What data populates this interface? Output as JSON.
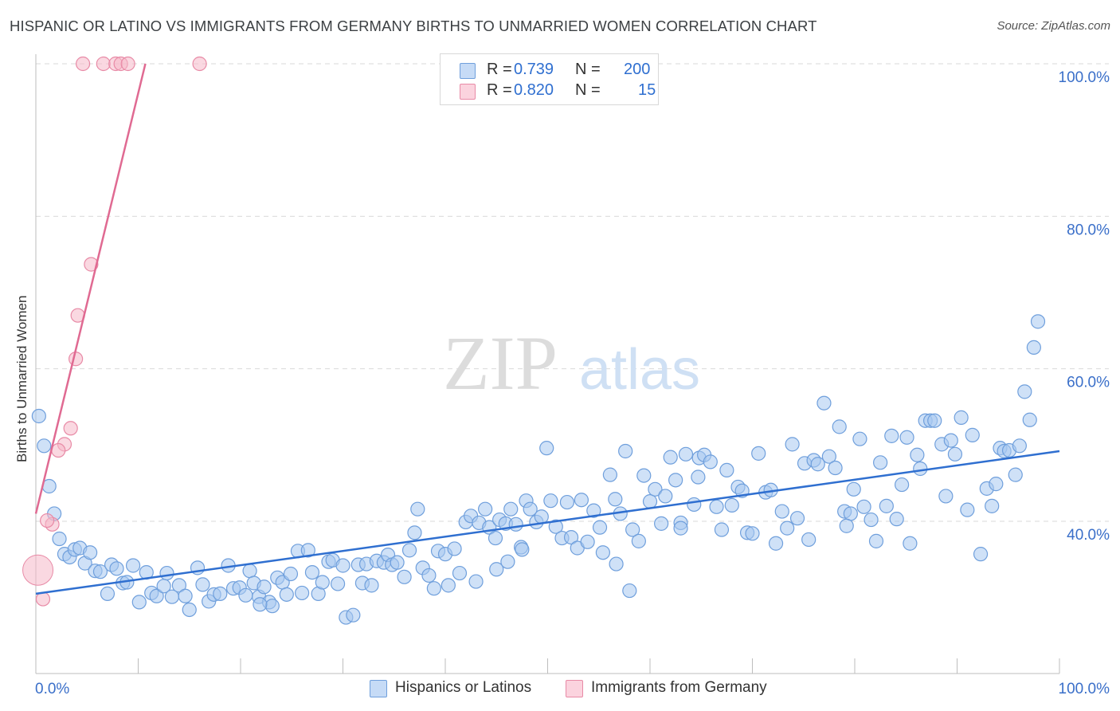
{
  "header": {
    "title": "HISPANIC OR LATINO VS IMMIGRANTS FROM GERMANY BIRTHS TO UNMARRIED WOMEN CORRELATION CHART",
    "source": "Source: ZipAtlas.com"
  },
  "legend": {
    "rows": [
      {
        "r_label": "R =",
        "r_value": "0.739",
        "n_label": "N =",
        "n_value": "200",
        "color": "#a8c8f0"
      },
      {
        "r_label": "R =",
        "r_value": "0.820",
        "n_label": "N =",
        "n_value": "15",
        "color": "#f5b8c8"
      }
    ]
  },
  "watermark": {
    "zip": "ZIP",
    "atlas": "atlas"
  },
  "colors": {
    "blue_fill": "#a8c8f0",
    "blue_stroke": "#6f9fdc",
    "blue_line": "#2f6fd0",
    "pink_fill": "#f5b8c8",
    "pink_stroke": "#e88aa6",
    "pink_line": "#e06a92",
    "tick_label": "#3a6fc9",
    "grid": "#d9d9d9"
  },
  "chart_data": {
    "type": "scatter",
    "title": "HISPANIC OR LATINO VS IMMIGRANTS FROM GERMANY BIRTHS TO UNMARRIED WOMEN CORRELATION CHART",
    "xlabel": "",
    "ylabel": "Births to Unmarried Women",
    "xlim": [
      0,
      100
    ],
    "ylim": [
      18,
      102
    ],
    "x_tick_labels": [
      "0.0%",
      "100.0%"
    ],
    "y_ticks": [
      40,
      60,
      80,
      100
    ],
    "y_tick_labels": [
      "40.0%",
      "60.0%",
      "80.0%",
      "100.0%"
    ],
    "grid": true,
    "legend_position": "bottom-center",
    "series": [
      {
        "name": "Hispanics or Latinos",
        "color": "#a8c8f0",
        "R": 0.739,
        "N": 200,
        "trend": {
          "x": [
            0,
            100
          ],
          "y": [
            30.5,
            49.2
          ]
        },
        "points": [
          [
            0.3,
            53.8
          ],
          [
            0.8,
            49.9
          ],
          [
            1.3,
            44.6
          ],
          [
            1.8,
            41.0
          ],
          [
            2.3,
            37.7
          ],
          [
            2.8,
            35.7
          ],
          [
            3.3,
            35.3
          ],
          [
            3.8,
            36.3
          ],
          [
            4.3,
            36.5
          ],
          [
            4.8,
            34.5
          ],
          [
            5.3,
            35.9
          ],
          [
            5.8,
            33.5
          ],
          [
            6.3,
            33.4
          ],
          [
            7.0,
            30.5
          ],
          [
            7.4,
            34.3
          ],
          [
            7.9,
            33.8
          ],
          [
            8.5,
            31.9
          ],
          [
            8.9,
            32.0
          ],
          [
            9.5,
            34.2
          ],
          [
            10.1,
            29.4
          ],
          [
            10.8,
            33.3
          ],
          [
            11.3,
            30.6
          ],
          [
            11.8,
            30.2
          ],
          [
            12.5,
            31.5
          ],
          [
            12.8,
            33.2
          ],
          [
            13.3,
            30.1
          ],
          [
            14.0,
            31.6
          ],
          [
            14.6,
            30.2
          ],
          [
            15.0,
            28.4
          ],
          [
            15.8,
            33.9
          ],
          [
            16.3,
            31.7
          ],
          [
            16.9,
            29.5
          ],
          [
            17.4,
            30.4
          ],
          [
            18.0,
            30.5
          ],
          [
            18.8,
            34.2
          ],
          [
            19.3,
            31.2
          ],
          [
            19.9,
            31.3
          ],
          [
            20.5,
            30.3
          ],
          [
            20.9,
            33.5
          ],
          [
            21.3,
            31.9
          ],
          [
            21.8,
            30.1
          ],
          [
            22.3,
            31.4
          ],
          [
            22.8,
            29.4
          ],
          [
            23.1,
            28.9
          ],
          [
            23.6,
            32.6
          ],
          [
            24.1,
            32.0
          ],
          [
            24.5,
            30.4
          ],
          [
            24.9,
            33.1
          ],
          [
            25.6,
            36.1
          ],
          [
            26.0,
            30.6
          ],
          [
            26.6,
            36.2
          ],
          [
            27.0,
            33.3
          ],
          [
            27.6,
            30.5
          ],
          [
            28.0,
            32.0
          ],
          [
            28.6,
            34.7
          ],
          [
            29.0,
            34.9
          ],
          [
            29.5,
            31.8
          ],
          [
            30.0,
            34.2
          ],
          [
            30.3,
            27.4
          ],
          [
            31.0,
            27.7
          ],
          [
            31.5,
            34.3
          ],
          [
            31.9,
            31.9
          ],
          [
            32.3,
            34.4
          ],
          [
            32.8,
            31.6
          ],
          [
            33.3,
            34.8
          ],
          [
            34.0,
            34.6
          ],
          [
            34.4,
            35.6
          ],
          [
            34.8,
            34.3
          ],
          [
            35.3,
            34.6
          ],
          [
            36.0,
            32.7
          ],
          [
            36.5,
            36.2
          ],
          [
            37.0,
            38.5
          ],
          [
            37.3,
            41.6
          ],
          [
            37.8,
            33.9
          ],
          [
            38.4,
            32.9
          ],
          [
            38.9,
            31.2
          ],
          [
            39.3,
            36.1
          ],
          [
            40.0,
            35.7
          ],
          [
            40.3,
            31.6
          ],
          [
            40.9,
            36.4
          ],
          [
            41.4,
            33.2
          ],
          [
            42.0,
            39.9
          ],
          [
            42.5,
            40.7
          ],
          [
            43.0,
            32.1
          ],
          [
            43.3,
            39.8
          ],
          [
            43.9,
            41.6
          ],
          [
            44.3,
            39.2
          ],
          [
            44.9,
            37.8
          ],
          [
            45.3,
            40.2
          ],
          [
            45.9,
            39.7
          ],
          [
            46.4,
            41.6
          ],
          [
            46.9,
            39.6
          ],
          [
            47.4,
            36.6
          ],
          [
            47.9,
            42.7
          ],
          [
            48.3,
            41.6
          ],
          [
            48.9,
            39.9
          ],
          [
            49.4,
            40.6
          ],
          [
            49.9,
            49.6
          ],
          [
            50.3,
            42.7
          ],
          [
            50.8,
            39.3
          ],
          [
            51.4,
            37.8
          ],
          [
            51.9,
            42.5
          ],
          [
            52.3,
            37.9
          ],
          [
            52.9,
            36.5
          ],
          [
            53.3,
            42.8
          ],
          [
            53.9,
            37.3
          ],
          [
            54.5,
            41.4
          ],
          [
            55.1,
            39.2
          ],
          [
            55.4,
            35.9
          ],
          [
            56.1,
            46.1
          ],
          [
            56.6,
            42.9
          ],
          [
            57.1,
            41.0
          ],
          [
            57.6,
            49.2
          ],
          [
            58.3,
            38.9
          ],
          [
            58.9,
            37.4
          ],
          [
            59.4,
            46.0
          ],
          [
            60.0,
            42.6
          ],
          [
            60.5,
            44.2
          ],
          [
            61.1,
            39.7
          ],
          [
            61.5,
            43.3
          ],
          [
            62.0,
            48.4
          ],
          [
            62.5,
            45.4
          ],
          [
            63.0,
            39.8
          ],
          [
            63.5,
            48.8
          ],
          [
            64.3,
            42.2
          ],
          [
            64.8,
            48.3
          ],
          [
            65.3,
            48.7
          ],
          [
            65.9,
            47.8
          ],
          [
            66.5,
            41.9
          ],
          [
            67.0,
            38.9
          ],
          [
            67.5,
            46.7
          ],
          [
            68.0,
            42.1
          ],
          [
            68.6,
            44.5
          ],
          [
            69.0,
            44.0
          ],
          [
            69.5,
            38.5
          ],
          [
            70.0,
            38.4
          ],
          [
            70.6,
            48.9
          ],
          [
            71.3,
            43.8
          ],
          [
            71.8,
            44.1
          ],
          [
            72.3,
            37.1
          ],
          [
            72.9,
            41.3
          ],
          [
            73.4,
            39.1
          ],
          [
            73.9,
            50.1
          ],
          [
            74.4,
            40.4
          ],
          [
            75.1,
            47.6
          ],
          [
            75.5,
            37.6
          ],
          [
            76.0,
            48.0
          ],
          [
            76.4,
            47.5
          ],
          [
            77.0,
            55.5
          ],
          [
            77.5,
            48.5
          ],
          [
            78.1,
            47.0
          ],
          [
            78.5,
            52.4
          ],
          [
            79.0,
            41.3
          ],
          [
            79.6,
            41.0
          ],
          [
            79.9,
            44.2
          ],
          [
            80.5,
            50.8
          ],
          [
            80.9,
            41.9
          ],
          [
            81.6,
            40.2
          ],
          [
            82.1,
            37.4
          ],
          [
            82.5,
            47.7
          ],
          [
            83.1,
            42.0
          ],
          [
            83.6,
            51.2
          ],
          [
            84.1,
            40.3
          ],
          [
            84.6,
            44.8
          ],
          [
            85.1,
            51.0
          ],
          [
            85.4,
            37.1
          ],
          [
            86.1,
            48.7
          ],
          [
            86.4,
            46.9
          ],
          [
            86.9,
            53.2
          ],
          [
            87.4,
            53.2
          ],
          [
            87.8,
            53.2
          ],
          [
            88.5,
            50.1
          ],
          [
            88.9,
            43.3
          ],
          [
            89.4,
            50.6
          ],
          [
            89.8,
            48.8
          ],
          [
            90.4,
            53.6
          ],
          [
            91.0,
            41.5
          ],
          [
            91.5,
            51.3
          ],
          [
            92.3,
            35.7
          ],
          [
            92.9,
            44.3
          ],
          [
            93.4,
            42.0
          ],
          [
            93.8,
            44.9
          ],
          [
            94.2,
            49.6
          ],
          [
            94.6,
            49.2
          ],
          [
            95.1,
            49.3
          ],
          [
            95.7,
            46.1
          ],
          [
            96.1,
            49.9
          ],
          [
            96.6,
            57.0
          ],
          [
            97.1,
            53.3
          ],
          [
            97.5,
            62.8
          ],
          [
            97.9,
            66.2
          ],
          [
            21.9,
            29.1
          ],
          [
            45.0,
            33.7
          ],
          [
            47.5,
            36.3
          ],
          [
            58.0,
            30.9
          ],
          [
            63.0,
            39.1
          ],
          [
            79.2,
            39.4
          ],
          [
            64.7,
            45.8
          ],
          [
            56.7,
            34.4
          ],
          [
            46.1,
            34.7
          ]
        ]
      },
      {
        "name": "Immigrants from Germany",
        "color": "#f5b8c8",
        "R": 0.82,
        "N": 15,
        "trend": {
          "x": [
            0,
            10.7
          ],
          "y": [
            41.0,
            100
          ]
        },
        "points": [
          [
            4.6,
            100
          ],
          [
            6.6,
            100
          ],
          [
            7.8,
            100
          ],
          [
            8.3,
            100
          ],
          [
            9.0,
            100
          ],
          [
            16.0,
            100
          ],
          [
            5.4,
            73.7
          ],
          [
            4.1,
            67.0
          ],
          [
            3.9,
            61.3
          ],
          [
            3.4,
            52.2
          ],
          [
            2.8,
            50.1
          ],
          [
            2.2,
            49.3
          ],
          [
            1.6,
            39.6
          ],
          [
            1.1,
            40.1
          ],
          [
            0.7,
            29.8
          ]
        ],
        "large_point": [
          0.2,
          33.6
        ]
      }
    ]
  },
  "bottom_legend": [
    {
      "label": "Hispanics or Latinos",
      "color": "#a8c8f0"
    },
    {
      "label": "Immigrants from Germany",
      "color": "#f5b8c8"
    }
  ]
}
